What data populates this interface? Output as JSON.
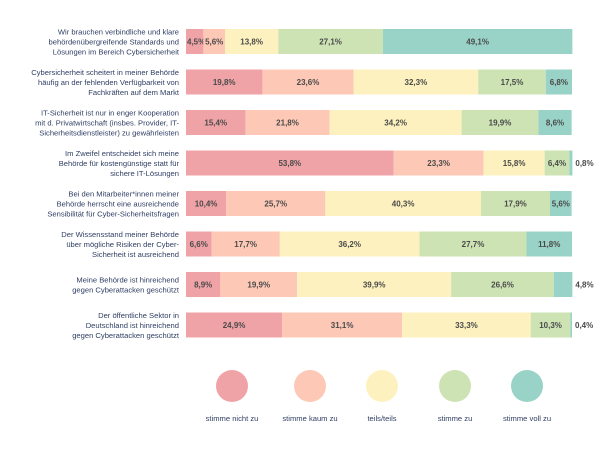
{
  "chart_data": {
    "type": "bar",
    "orientation": "horizontal",
    "stacked": true,
    "xlim": [
      0,
      100
    ],
    "grid": false,
    "legend_placement": "bottom",
    "categories": [
      "Wir brauchen verbindliche und klare behördenübergreifende Standards und Lösungen im Bereich Cybersicherheit",
      "Cybersicherheit scheitert in meiner Behörde häufig an der fehlenden Verfügbarkeit von Fachkräften auf dem Markt",
      "IT-Sicherheit ist nur in enger Kooperation mit d. Privatwirtschaft (insbes. Provider, IT-Sicherheitsdienstleister) zu gewährleisten",
      "Im Zweifel entscheidet sich meine Behörde für kostengünstige statt für sichere IT-Lösungen",
      "Bei den Mitarbeiter*innen meiner Behörde herrscht eine ausreichende Sensibilität für Cyber-Sicherheitsfragen",
      "Der Wissensstand meiner Behörde über mögliche Risiken der Cyber-Sicherheit ist ausreichend",
      "Meine Behörde ist hinreichend gegen Cyberattacken geschützt",
      "Der öffentliche Sektor in Deutschland ist hinreichend gegen Cyberattacken geschützt"
    ],
    "category_lines": [
      [
        "Wir brauchen verbindliche und klare",
        "behördenübergreifende Standards und",
        "Lösungen im Bereich Cybersicherheit"
      ],
      [
        "Cybersicherheit scheitert in meiner Behörde",
        "häufig an der fehlenden Verfügbarkeit von",
        "Fachkräften auf dem Markt"
      ],
      [
        "IT-Sicherheit ist nur in enger Kooperation",
        "mit d. Privatwirtschaft (insbes. Provider, IT-",
        "Sicherheitsdienstleister) zu gewährleisten"
      ],
      [
        "Im Zweifel entscheidet sich meine",
        "Behörde für kostengünstige statt für",
        "sichere IT-Lösungen"
      ],
      [
        "Bei den Mitarbeiter*innen meiner",
        "Behörde herrscht eine ausreichende",
        "Sensibilität für Cyber-Sicherheitsfragen"
      ],
      [
        "Der Wissensstand meiner Behörde",
        "über mögliche Risiken der Cyber-",
        "Sicherheit ist ausreichend"
      ],
      [
        "Meine Behörde ist hinreichend",
        "gegen Cyberattacken geschützt"
      ],
      [
        "Der öffentliche Sektor in",
        "Deutschland ist hinreichend",
        "gegen Cyberattacken geschützt"
      ]
    ],
    "series": [
      {
        "name": "stimme nicht zu",
        "color": "#f0a3a7",
        "values": [
          4.5,
          19.8,
          15.4,
          53.8,
          10.4,
          6.6,
          8.9,
          24.9
        ],
        "labels": [
          "4,5%",
          "19,8%",
          "15,4%",
          "53,8%",
          "10,4%",
          "6,6%",
          "8,9%",
          "24,9%"
        ]
      },
      {
        "name": "stimme kaum zu",
        "color": "#fdc8b6",
        "values": [
          5.6,
          23.6,
          21.8,
          23.3,
          25.7,
          17.7,
          19.9,
          31.1
        ],
        "labels": [
          "5,6%",
          "23,6%",
          "21,8%",
          "23,3%",
          "25,7%",
          "17,7%",
          "19,9%",
          "31,1%"
        ]
      },
      {
        "name": "teils/teils",
        "color": "#fdf2bf",
        "values": [
          13.8,
          32.3,
          34.2,
          15.8,
          40.3,
          36.2,
          39.9,
          33.3
        ],
        "labels": [
          "13,8%",
          "32,3%",
          "34,2%",
          "15,8%",
          "40,3%",
          "36,2%",
          "39,9%",
          "33,3%"
        ]
      },
      {
        "name": "stimme zu",
        "color": "#cde3b4",
        "values": [
          27.1,
          17.5,
          19.9,
          6.4,
          17.9,
          27.7,
          26.6,
          10.3
        ],
        "labels": [
          "27,1%",
          "17,5%",
          "19,9%",
          "6,4%",
          "17,9%",
          "27,7%",
          "26,6%",
          "10,3%"
        ]
      },
      {
        "name": "stimme voll zu",
        "color": "#99d3c7",
        "values": [
          49.1,
          6.8,
          8.6,
          0.8,
          5.6,
          11.8,
          4.8,
          0.4
        ],
        "labels": [
          "49,1%",
          "6,8%",
          "8,6%",
          "0,8%",
          "5,6%",
          "11,8%",
          "4,8%",
          "0,4%"
        ]
      }
    ],
    "label_color": "#4a4a4a",
    "category_label_color": "#2f3e63"
  }
}
